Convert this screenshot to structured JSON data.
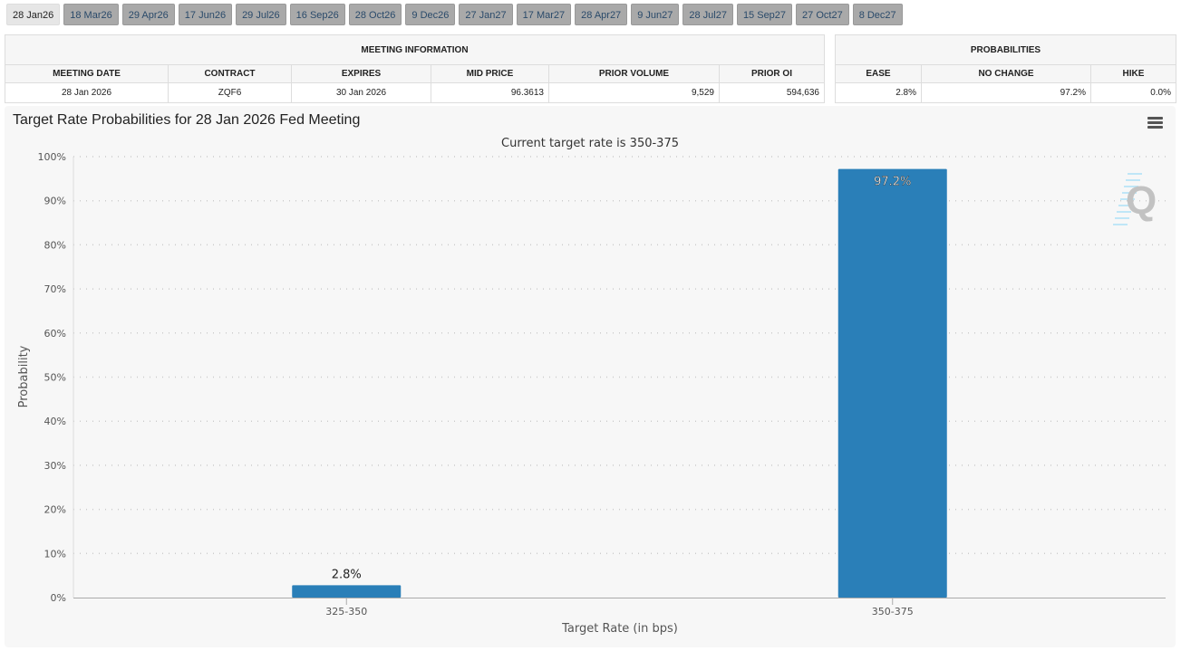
{
  "tabs": [
    "28 Jan26",
    "18 Mar26",
    "29 Apr26",
    "17 Jun26",
    "29 Jul26",
    "16 Sep26",
    "28 Oct26",
    "9 Dec26",
    "27 Jan27",
    "17 Mar27",
    "28 Apr27",
    "9 Jun27",
    "28 Jul27",
    "15 Sep27",
    "27 Oct27",
    "8 Dec27"
  ],
  "active_tab": 0,
  "meeting_info": {
    "title": "MEETING INFORMATION",
    "headers": [
      "MEETING DATE",
      "CONTRACT",
      "EXPIRES",
      "MID PRICE",
      "PRIOR VOLUME",
      "PRIOR OI"
    ],
    "values": [
      "28 Jan 2026",
      "ZQF6",
      "30 Jan 2026",
      "96.3613",
      "9,529",
      "594,636"
    ]
  },
  "probabilities": {
    "title": "PROBABILITIES",
    "headers": [
      "EASE",
      "NO CHANGE",
      "HIKE"
    ],
    "values": [
      "2.8%",
      "97.2%",
      "0.0%"
    ]
  },
  "chart_data": {
    "type": "bar",
    "title": "Target Rate Probabilities for 28 Jan 2026 Fed Meeting",
    "subtitle": "Current target rate is 350-375",
    "xlabel": "Target Rate (in bps)",
    "ylabel": "Probability",
    "categories": [
      "325-350",
      "350-375"
    ],
    "values": [
      2.8,
      97.2
    ],
    "data_labels": [
      "2.8%",
      "97.2%"
    ],
    "ylim": [
      0,
      100
    ],
    "yticks": [
      "0%",
      "10%",
      "20%",
      "30%",
      "40%",
      "50%",
      "60%",
      "70%",
      "80%",
      "90%",
      "100%"
    ],
    "grid": true,
    "color": "#2a7fb8"
  },
  "icons": {
    "menu": "hamburger-menu-icon",
    "watermark": "q-logo"
  }
}
